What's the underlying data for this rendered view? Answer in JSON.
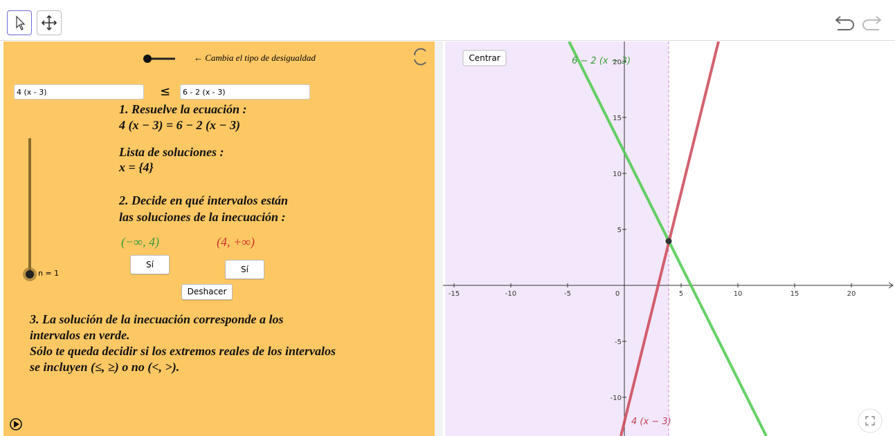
{
  "left_panel": {
    "slider_caption": "← Cambia el tipo de desigualdad",
    "input_left": "4 (x - 3)",
    "relation": "≤",
    "input_right": "6 - 2 (x - 3)",
    "step1_title": "1. Resuelve la ecuación :",
    "equation": "4 (x − 3) = 6 − 2 (x − 3)",
    "solutions_title": "Lista de soluciones :",
    "solutions": "x = {4}",
    "step2_lines": [
      "2. Decide en qué intervalos están",
      "las soluciones de la inecuación :"
    ],
    "interval_left": "(−∞, 4)",
    "interval_right": "(4, +∞)",
    "button_left": "Sí",
    "button_right": "Sí",
    "undo_button": "Deshacer",
    "slider_label": "n = 1",
    "step3_lines": [
      "3. La solución de la inecuación corresponde a los",
      "intervalos en verde.",
      "Sólo te queda decidir si los extremos reales de los intervalos",
      "se incluyen (≤, ≥) o no (<, >)."
    ]
  },
  "graph": {
    "center_button": "Centrar",
    "xticks": [
      -15,
      -10,
      -5,
      0,
      5,
      10,
      15,
      20
    ],
    "yticks": [
      -10,
      -5,
      5,
      10,
      15,
      20
    ],
    "label_green": "6 − 2 (x − 3)",
    "label_red": "4 (x − 3)"
  }
}
